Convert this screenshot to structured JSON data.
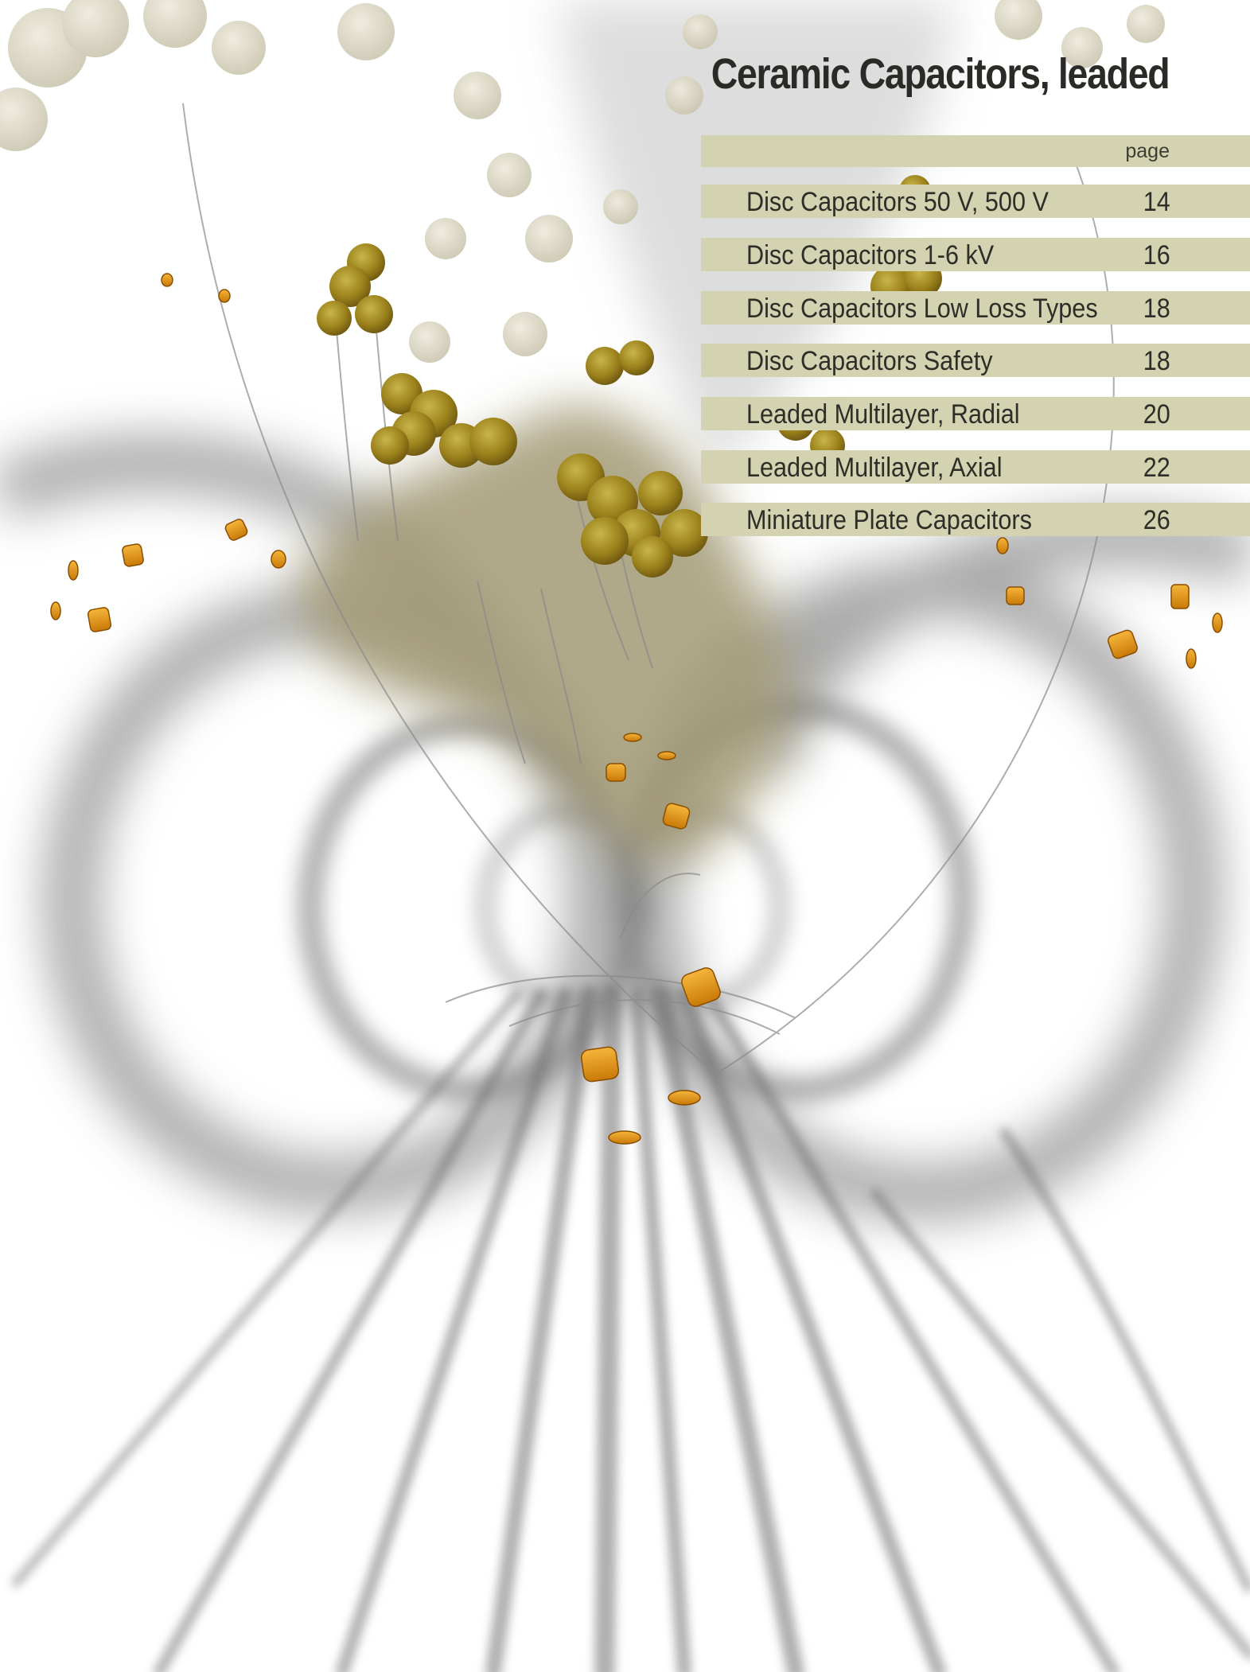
{
  "title": "Ceramic Capacitors, leaded",
  "toc": {
    "page_header": "page",
    "entries": [
      {
        "title": "Disc Capacitors 50 V, 500 V",
        "page": "14"
      },
      {
        "title": "Disc Capacitors 1-6 kV",
        "page": "16"
      },
      {
        "title": "Disc Capacitors Low Loss Types",
        "page": "18"
      },
      {
        "title": "Disc Capacitors Safety",
        "page": "18"
      },
      {
        "title": "Leaded Multilayer, Radial",
        "page": "20"
      },
      {
        "title": "Leaded Multilayer, Axial",
        "page": "22"
      },
      {
        "title": "Miniature Plate Capacitors",
        "page": "26"
      }
    ]
  },
  "colors": {
    "band": "#d3d2b1",
    "text": "#2e2d27",
    "capacitor_orange": "#e39a1c",
    "disc_olive": "#8c7418"
  }
}
